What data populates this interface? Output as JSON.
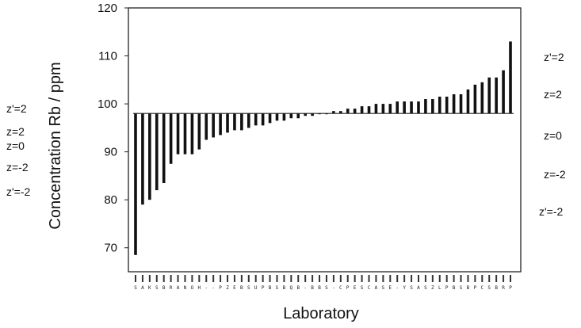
{
  "chart_data": {
    "type": "bar",
    "xlabel": "Laboratory",
    "ylabel": "Concentration Rb / ppm",
    "ylim": [
      65,
      120
    ],
    "yticks": [
      70,
      80,
      90,
      100,
      110,
      120
    ],
    "baseline": 98,
    "grid": false,
    "values": [
      68.5,
      79,
      80,
      82,
      83.5,
      87.5,
      89.5,
      89.5,
      89.5,
      90.5,
      92.5,
      93,
      93.5,
      94,
      94.5,
      94.5,
      95,
      95.5,
      95.5,
      96,
      96.5,
      96.5,
      97,
      97,
      97.5,
      97.5,
      98,
      98,
      98.5,
      98.5,
      99,
      99,
      99.5,
      99.5,
      100,
      100,
      100,
      100.5,
      100.5,
      100.5,
      100.5,
      101,
      101,
      101.5,
      101.5,
      102,
      102,
      103,
      104,
      104.5,
      105.5,
      105.5,
      107,
      113
    ],
    "left_z_labels": [
      "z'=2",
      "z=2",
      "z=0",
      "z=-2",
      "z'=-2"
    ],
    "right_z_labels": [
      "z'=2",
      "z=2",
      "z=0",
      "z=-2",
      "z'=-2"
    ]
  }
}
